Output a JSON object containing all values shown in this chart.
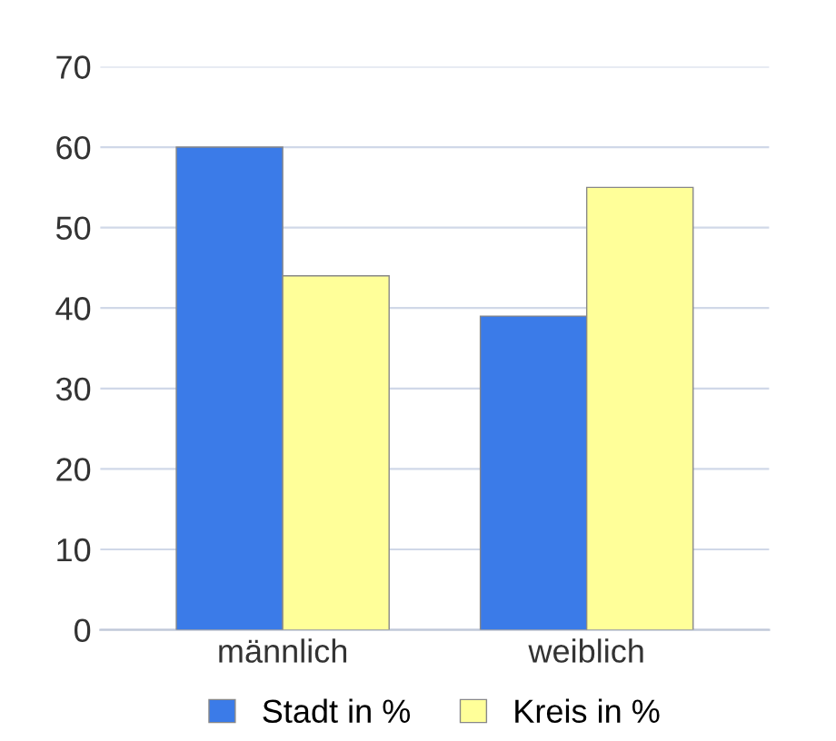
{
  "chart_data": {
    "type": "bar",
    "categories": [
      "männlich",
      "weiblich"
    ],
    "series": [
      {
        "name": "Stadt in %",
        "color": "#3b7be8",
        "values": [
          60,
          39
        ]
      },
      {
        "name": "Kreis in %",
        "color": "#ffff99",
        "values": [
          44,
          55
        ]
      }
    ],
    "ylim": [
      0,
      70
    ],
    "yticks": [
      0,
      10,
      20,
      30,
      40,
      50,
      60,
      70
    ],
    "grid": "y",
    "legend": "bottom"
  }
}
